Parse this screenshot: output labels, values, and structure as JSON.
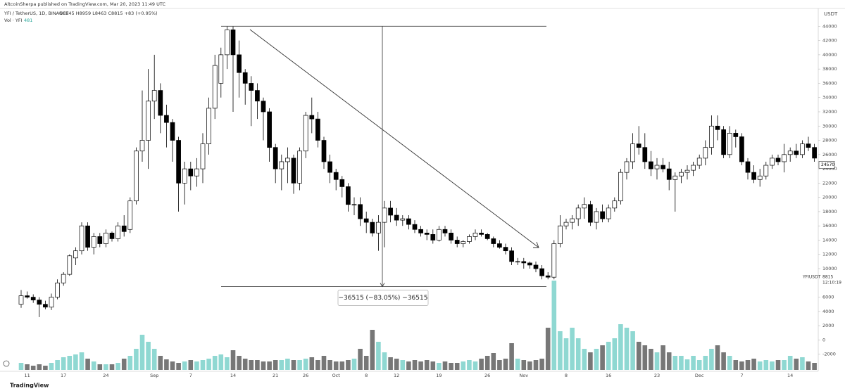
{
  "chart_data": {
    "type": "candlestick",
    "header": {
      "publisher": "AltcoinSherpa published on TradingView.com, Mar 20, 2023 11:49 UTC",
      "symbol": "YFI / TetherUS, 1D, BINANCE",
      "ohlc": "O8745 H8959 L8463 C8815 +83 (+0.95%)",
      "volume_label": "Vol · YFI",
      "volume_value": 481
    },
    "y_unit": "USDT",
    "footer": "TradingView",
    "categories": [
      null,
      "11",
      null,
      null,
      null,
      null,
      null,
      "17",
      null,
      null,
      null,
      null,
      null,
      null,
      "24",
      null,
      null,
      null,
      null,
      null,
      null,
      null,
      "Sep",
      null,
      null,
      null,
      null,
      null,
      "7",
      null,
      null,
      null,
      null,
      null,
      null,
      "14",
      null,
      null,
      null,
      null,
      null,
      null,
      "21",
      null,
      null,
      null,
      null,
      "26",
      null,
      null,
      null,
      null,
      "Oct",
      null,
      null,
      null,
      null,
      "8",
      null,
      null,
      null,
      null,
      "12",
      null,
      null,
      null,
      null,
      null,
      null,
      "19",
      null,
      null,
      null,
      null,
      null,
      null,
      null,
      "26",
      null,
      null,
      null,
      null,
      null,
      "Nov",
      null,
      null,
      null,
      null,
      null,
      null,
      "8",
      null,
      null,
      null,
      null,
      null,
      null,
      "16",
      null,
      null,
      null,
      null,
      null,
      null,
      null,
      "23",
      null,
      null,
      null,
      null,
      null,
      null,
      "Dec",
      null,
      null,
      null,
      null,
      null,
      null,
      "7",
      null,
      null,
      null,
      null,
      null,
      null,
      null,
      "14",
      null,
      null,
      null,
      null
    ],
    "open": [
      5000,
      6200,
      6000,
      5600,
      5000,
      4600,
      6000,
      8000,
      9200,
      11500,
      12500,
      16000,
      13000,
      14500,
      13500,
      15000,
      14200,
      16000,
      15500,
      19500,
      26500,
      28000,
      33500,
      35000,
      31500,
      30500,
      28000,
      22000,
      24000,
      23000,
      24000,
      27500,
      32500,
      36000,
      40000,
      43500,
      40000,
      37500,
      36000,
      35000,
      33500,
      32000,
      27000,
      24000,
      25000,
      25500,
      22000,
      26500,
      31500,
      31000,
      28000,
      25000,
      23500,
      22500,
      21500,
      19000,
      19000,
      17000,
      16500,
      15000,
      16500,
      18500,
      17500,
      16800,
      17000,
      16200,
      15500,
      15000,
      14800,
      14000,
      15500,
      15000,
      14000,
      13500,
      13800,
      14500,
      15000,
      14800,
      14200,
      13500,
      13000,
      12500,
      11000,
      11000,
      10800,
      10500,
      10000,
      9000,
      8800,
      13500,
      16000,
      16500,
      17000,
      18500,
      19000,
      16500,
      18000,
      17000,
      18500,
      19500,
      23500,
      25000,
      27500,
      27000,
      25000,
      24000,
      24500,
      24000,
      22500,
      23000,
      23500,
      23800,
      24500,
      25500,
      27000,
      30000,
      29500,
      26000,
      29000,
      28500,
      25000,
      23500,
      22500,
      23000,
      24500,
      25500,
      25000,
      26000,
      26500,
      26000,
      27500,
      27000
    ],
    "high": [
      7000,
      6800,
      6400,
      6000,
      5500,
      6500,
      8500,
      9500,
      12000,
      13000,
      16500,
      16500,
      15000,
      15000,
      15500,
      15200,
      16500,
      17500,
      20000,
      27000,
      35000,
      38000,
      40000,
      36000,
      33000,
      31000,
      28500,
      25000,
      25000,
      25500,
      29000,
      34000,
      40000,
      41000,
      44000,
      44000,
      42000,
      38000,
      37000,
      36000,
      34000,
      32500,
      27500,
      26000,
      27000,
      26000,
      27000,
      32000,
      34000,
      32000,
      28500,
      26000,
      24000,
      23000,
      22000,
      20000,
      20000,
      18000,
      17000,
      17500,
      19500,
      19500,
      18500,
      17500,
      17500,
      16800,
      16000,
      15500,
      15500,
      16000,
      16000,
      15500,
      14500,
      14000,
      14800,
      15500,
      15500,
      15000,
      14500,
      14000,
      13500,
      13000,
      11500,
      11500,
      11000,
      11000,
      10500,
      9500,
      14000,
      17500,
      17000,
      17500,
      19000,
      20000,
      19500,
      18500,
      19000,
      19000,
      20000,
      24000,
      25500,
      29000,
      30000,
      29000,
      26500,
      25500,
      25500,
      25000,
      23500,
      24000,
      24500,
      25000,
      26000,
      28000,
      31500,
      31500,
      30000,
      30000,
      29500,
      29000,
      25500,
      24500,
      24000,
      25000,
      26000,
      26000,
      27500,
      27000,
      27500,
      28000,
      28500,
      27500
    ],
    "low": [
      4500,
      5800,
      5200,
      3200,
      4300,
      4200,
      5700,
      7600,
      9000,
      10500,
      12000,
      12500,
      12000,
      13000,
      13000,
      13800,
      13800,
      14500,
      15000,
      19000,
      25000,
      24000,
      31000,
      29000,
      27000,
      25000,
      18000,
      19000,
      21000,
      21500,
      22000,
      26000,
      31000,
      34000,
      38000,
      32000,
      34000,
      33000,
      30000,
      31000,
      28000,
      25000,
      22000,
      21000,
      22000,
      20500,
      21000,
      25500,
      29000,
      27000,
      24000,
      22000,
      21000,
      20000,
      18000,
      17500,
      16000,
      15000,
      14500,
      12500,
      13000,
      16500,
      16000,
      16000,
      15500,
      15000,
      14500,
      14000,
      13500,
      13800,
      14500,
      13500,
      13000,
      13000,
      13500,
      14000,
      14500,
      14000,
      13000,
      12800,
      12000,
      10500,
      10500,
      10000,
      10000,
      9500,
      8500,
      8500,
      8500,
      13000,
      15500,
      15500,
      16000,
      17000,
      16000,
      15500,
      16500,
      16500,
      18000,
      19000,
      22500,
      24000,
      26000,
      24000,
      23000,
      22500,
      23500,
      21000,
      18000,
      22000,
      22500,
      23000,
      24000,
      24500,
      26000,
      28000,
      25500,
      25500,
      27000,
      24500,
      22500,
      22000,
      21500,
      22500,
      24000,
      24500,
      23500,
      25000,
      25500,
      25500,
      26500,
      25000
    ],
    "close": [
      6200,
      6000,
      5600,
      5000,
      4600,
      6000,
      8000,
      9200,
      11800,
      12500,
      16000,
      13000,
      14500,
      13500,
      15000,
      14200,
      16000,
      15200,
      19500,
      26500,
      28000,
      33500,
      35000,
      31500,
      30500,
      28000,
      22000,
      24000,
      23000,
      24000,
      27500,
      32500,
      38500,
      40000,
      43500,
      40000,
      37500,
      36000,
      35000,
      33500,
      32000,
      27000,
      24000,
      25000,
      25500,
      22000,
      26500,
      31500,
      31000,
      28000,
      25000,
      23500,
      22500,
      21500,
      19000,
      19000,
      17000,
      16500,
      15000,
      16500,
      18500,
      17500,
      16800,
      17000,
      16200,
      15500,
      15000,
      14800,
      14000,
      15500,
      15000,
      14000,
      13500,
      13800,
      14500,
      15000,
      14800,
      14200,
      13500,
      13000,
      12500,
      11000,
      11000,
      10800,
      10500,
      10000,
      9000,
      8800,
      13500,
      16000,
      16500,
      17000,
      18500,
      19000,
      16500,
      18000,
      17000,
      18500,
      19500,
      23500,
      25000,
      27500,
      27000,
      25000,
      24000,
      24500,
      24000,
      22500,
      23000,
      23500,
      23800,
      24500,
      25500,
      27000,
      30000,
      29500,
      26000,
      29000,
      28500,
      25000,
      23500,
      22500,
      23000,
      24500,
      25500,
      25000,
      26000,
      26500,
      26000,
      27500,
      27000,
      25500
    ],
    "volume": [
      500,
      400,
      300,
      400,
      300,
      500,
      700,
      900,
      1000,
      1100,
      1250,
      800,
      600,
      400,
      400,
      400,
      500,
      800,
      1000,
      1500,
      2500,
      2000,
      1500,
      1000,
      750,
      600,
      500,
      600,
      700,
      600,
      700,
      800,
      1000,
      1100,
      900,
      1400,
      1000,
      800,
      700,
      700,
      600,
      600,
      700,
      700,
      800,
      700,
      700,
      800,
      900,
      700,
      1000,
      700,
      600,
      600,
      700,
      800,
      1500,
      1000,
      2850,
      2000,
      1250,
      900,
      800,
      700,
      600,
      700,
      600,
      700,
      600,
      500,
      600,
      500,
      500,
      600,
      700,
      600,
      800,
      1000,
      1200,
      700,
      800,
      1900,
      800,
      700,
      600,
      700,
      800,
      3000,
      6350,
      2750,
      2250,
      3000,
      2250,
      1500,
      1250,
      1500,
      1750,
      2000,
      2250,
      3250,
      3000,
      2750,
      2000,
      1750,
      1500,
      1250,
      1750,
      1250,
      1000,
      1000,
      750,
      1000,
      700,
      1000,
      1500,
      1750,
      1250,
      1000,
      700,
      600,
      700,
      800,
      600,
      700,
      600,
      700,
      700,
      1000,
      800,
      900,
      600,
      500
    ],
    "up_color": "#ffffff",
    "down_color": "#000000",
    "candle_border": "#000000",
    "volume_up_color": "#8fd8d2",
    "volume_down_color": "#777777",
    "ylim": [
      -4400,
      46500
    ],
    "yticks": [
      44000,
      42000,
      40000,
      38000,
      36000,
      34000,
      32000,
      30000,
      28000,
      26000,
      24000,
      22000,
      20000,
      18000,
      16000,
      14000,
      12000,
      10000,
      6000,
      4000,
      2000,
      0,
      -2000
    ],
    "vlim": [
      0,
      6500
    ],
    "grid": false,
    "price_marker": 24570,
    "symbol_label": "YFIUSDT",
    "last_close": 8815,
    "countdown": "12:10:19",
    "measure": {
      "high": 44000,
      "low": 7485,
      "label": "−36515 (−83.05%) −36515"
    }
  }
}
